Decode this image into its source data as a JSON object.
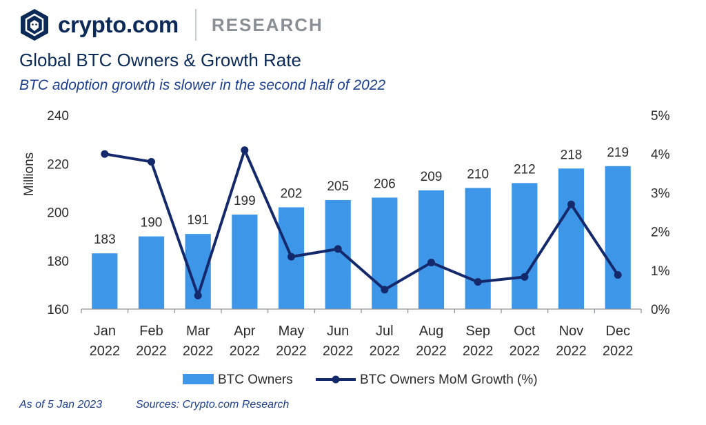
{
  "brand": {
    "logo_text": "crypto.com",
    "section": "RESEARCH",
    "logo_icon": "crypto-com-lion-shield-icon"
  },
  "header": {
    "title": "Global BTC Owners & Growth Rate",
    "subtitle": "BTC adoption growth is slower in the second half of 2022"
  },
  "footer": {
    "as_of": "As of 5 Jan 2023",
    "sources": "Sources: Crypto.com Research"
  },
  "colors": {
    "bar": "#3d96e8",
    "line": "#14296b",
    "axis": "#8a8f96",
    "text": "#2b2b2b"
  },
  "chart_data": {
    "type": "bar",
    "categories": [
      [
        "Jan",
        "2022"
      ],
      [
        "Feb",
        "2022"
      ],
      [
        "Mar",
        "2022"
      ],
      [
        "Apr",
        "2022"
      ],
      [
        "May",
        "2022"
      ],
      [
        "Jun",
        "2022"
      ],
      [
        "Jul",
        "2022"
      ],
      [
        "Aug",
        "2022"
      ],
      [
        "Sep",
        "2022"
      ],
      [
        "Oct",
        "2022"
      ],
      [
        "Nov",
        "2022"
      ],
      [
        "Dec",
        "2022"
      ]
    ],
    "series": [
      {
        "name": "BTC Owners",
        "type": "bar",
        "axis": "left",
        "values": [
          183,
          190,
          191,
          199,
          202,
          205,
          206,
          209,
          210,
          212,
          218,
          219
        ],
        "data_labels": [
          "183",
          "190",
          "191",
          "199",
          "202",
          "205",
          "206",
          "209",
          "210",
          "212",
          "218",
          "219"
        ]
      },
      {
        "name": "BTC Owners MoM Growth (%)",
        "type": "line",
        "axis": "right",
        "values": [
          4.0,
          3.8,
          0.35,
          4.1,
          1.35,
          1.55,
          0.5,
          1.2,
          0.7,
          0.83,
          2.7,
          0.88
        ]
      }
    ],
    "ylabel": "Millions",
    "ylim": [
      160,
      240
    ],
    "y_ticks": [
      "160",
      "180",
      "200",
      "220",
      "240"
    ],
    "y2lim": [
      0,
      5
    ],
    "y2_ticks": [
      "0%",
      "1%",
      "2%",
      "3%",
      "4%",
      "5%"
    ],
    "grid": false,
    "legend_position": "bottom"
  }
}
